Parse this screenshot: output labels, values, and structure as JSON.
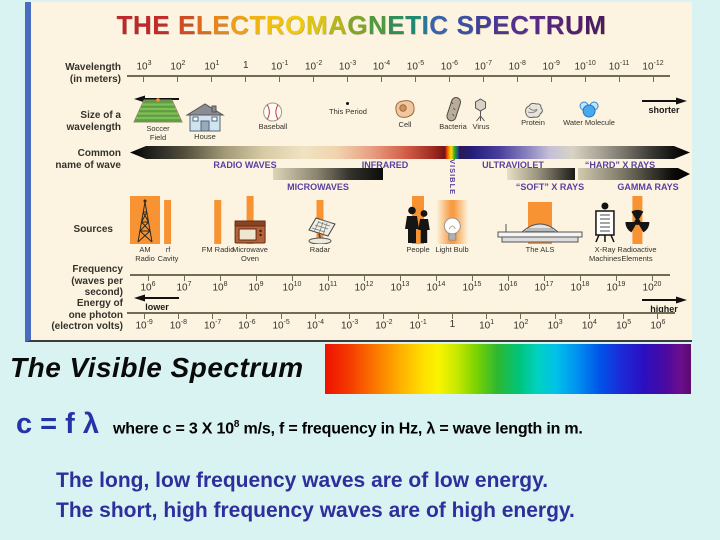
{
  "colors": {
    "panel_background": "#fcf4e0",
    "slide_background": "#d9f2f2",
    "source_bar_orange": "#f79333",
    "wave_label_purple": "#5b3fa0",
    "notes_navy": "#2d2f9c",
    "formula_blue": "#2632a8"
  },
  "diagram": {
    "title": {
      "text": "THE ELECTROMAGNETIC SPECTRUM",
      "letter_colors": [
        "#c0262c",
        "#c0262c",
        "#c32a28",
        "#cf4b22",
        "#dd6a1d",
        "#e6861a",
        "#eda017",
        "#f0b313",
        "#f1c00f",
        "#eec90d",
        "#dcc410",
        "#b3b71a",
        "#7fa629",
        "#4d9a40",
        "#2b9158",
        "#1d8a74",
        "#29789b",
        "#3864ae",
        "#3950a5",
        "#3f4099",
        "#4a3795",
        "#532f90",
        "#582a88",
        "#58257d",
        "#532071",
        "#4a1c64"
      ]
    },
    "wavelength_scale": {
      "label_lines": [
        "Wavelength",
        "(in meters)"
      ],
      "ticks": [
        "10^3",
        "10^2",
        "10^1",
        "1",
        "10^-1",
        "10^-2",
        "10^-3",
        "10^-4",
        "10^-5",
        "10^-6",
        "10^-7",
        "10^-8",
        "10^-9",
        "10^-10",
        "10^-11",
        "10^-12"
      ],
      "left_hint": "longer",
      "right_hint": "shorter"
    },
    "size_row": {
      "label_lines": [
        "Size of a",
        "wavelength"
      ],
      "items": [
        [
          "Soccer",
          "Field"
        ],
        [
          "House"
        ],
        [
          "Baseball"
        ],
        [
          "This Period"
        ],
        [
          "Cell"
        ],
        [
          "Bacteria"
        ],
        [
          "Virus"
        ],
        [
          "Protein"
        ],
        [
          "Water Molecule"
        ]
      ]
    },
    "wave_names": {
      "label_lines": [
        "Common",
        "name of wave"
      ],
      "top_labels": [
        "RADIO WAVES",
        "INFRARED",
        "VISIBLE",
        "ULTRAVIOLET",
        "“HARD” X RAYS"
      ],
      "bottom_labels": [
        "MICROWAVES",
        "“SOFT” X RAYS",
        "GAMMA RAYS"
      ]
    },
    "sources_row": {
      "label": "Sources",
      "items": [
        [
          "AM",
          "Radio"
        ],
        [
          "rf",
          "Cavity"
        ],
        [
          "FM Radio"
        ],
        [
          "Microwave",
          "Oven"
        ],
        [
          "Radar"
        ],
        [
          "People"
        ],
        [
          "Light Bulb"
        ],
        [
          "The ALS"
        ],
        [
          "X-Ray",
          "Machines"
        ],
        [
          "Radioactive",
          "Elements"
        ]
      ]
    },
    "frequency_scale": {
      "label_lines": [
        "Frequency",
        "(waves per",
        "second)"
      ],
      "ticks": [
        "10^6",
        "10^7",
        "10^8",
        "10^9",
        "10^10",
        "10^11",
        "10^12",
        "10^13",
        "10^14",
        "10^15",
        "10^16",
        "10^17",
        "10^18",
        "10^19",
        "10^20"
      ],
      "left_hint": "lower",
      "right_hint": "higher"
    },
    "energy_scale": {
      "label_lines": [
        "Energy of",
        "one photon",
        "(electron volts)"
      ],
      "ticks": [
        "10^-9",
        "10^-8",
        "10^-7",
        "10^-6",
        "10^-5",
        "10^-4",
        "10^-3",
        "10^-2",
        "10^-1",
        "1",
        "10^1",
        "10^2",
        "10^3",
        "10^4",
        "10^5",
        "10^6"
      ]
    }
  },
  "visible_spectrum": {
    "heading": "The Visible Spectrum"
  },
  "formula": {
    "equation": "c = f λ",
    "explanation": "where c = 3 X 10^8 m/s, f = frequency in Hz, λ = wave length in m."
  },
  "notes": [
    "The long, low frequency waves are of low energy.",
    "The short, high frequency waves are of high energy."
  ]
}
